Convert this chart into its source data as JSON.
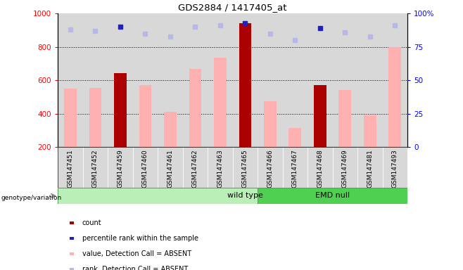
{
  "title": "GDS2884 / 1417405_at",
  "samples": [
    "GSM147451",
    "GSM147452",
    "GSM147459",
    "GSM147460",
    "GSM147461",
    "GSM147462",
    "GSM147463",
    "GSM147465",
    "GSM147466",
    "GSM147467",
    "GSM147468",
    "GSM147469",
    "GSM147481",
    "GSM147493"
  ],
  "values": [
    550,
    553,
    645,
    570,
    410,
    670,
    735,
    940,
    475,
    315,
    570,
    540,
    390,
    800
  ],
  "ranks": [
    88,
    87,
    90,
    85,
    83,
    90,
    91,
    93,
    85,
    80,
    89,
    86,
    83,
    91
  ],
  "bar_colors": [
    "#ffb0b0",
    "#ffb0b0",
    "#aa0000",
    "#ffb0b0",
    "#ffb0b0",
    "#ffb0b0",
    "#ffb0b0",
    "#aa0000",
    "#ffb0b0",
    "#ffb0b0",
    "#aa0000",
    "#ffb0b0",
    "#ffb0b0",
    "#ffb0b0"
  ],
  "rank_colors": [
    "#b8b8e8",
    "#b8b8e8",
    "#2222bb",
    "#b8b8e8",
    "#b8b8e8",
    "#b8b8e8",
    "#b8b8e8",
    "#2222bb",
    "#b8b8e8",
    "#b8b8e8",
    "#2222bb",
    "#b8b8e8",
    "#b8b8e8",
    "#b8b8e8"
  ],
  "ylim_left": [
    200,
    1000
  ],
  "ylim_right": [
    0,
    100
  ],
  "yticks_left": [
    200,
    400,
    600,
    800,
    1000
  ],
  "yticks_right": [
    0,
    25,
    50,
    75,
    100
  ],
  "wt_count": 8,
  "emd_count": 6,
  "group_labels": [
    "wild type",
    "EMD null"
  ],
  "group_color_wt": "#b8f0b8",
  "group_color_emd": "#50d050",
  "legend_items": [
    {
      "label": "count",
      "color": "#aa0000"
    },
    {
      "label": "percentile rank within the sample",
      "color": "#2222bb"
    },
    {
      "label": "value, Detection Call = ABSENT",
      "color": "#ffb0b0"
    },
    {
      "label": "rank, Detection Call = ABSENT",
      "color": "#b8b8e8"
    }
  ],
  "row_label": "genotype/variation",
  "dotted_lines": [
    400,
    600,
    800
  ],
  "bg_color": "#ffffff",
  "plot_bg": "#d8d8d8",
  "bar_width": 0.5
}
